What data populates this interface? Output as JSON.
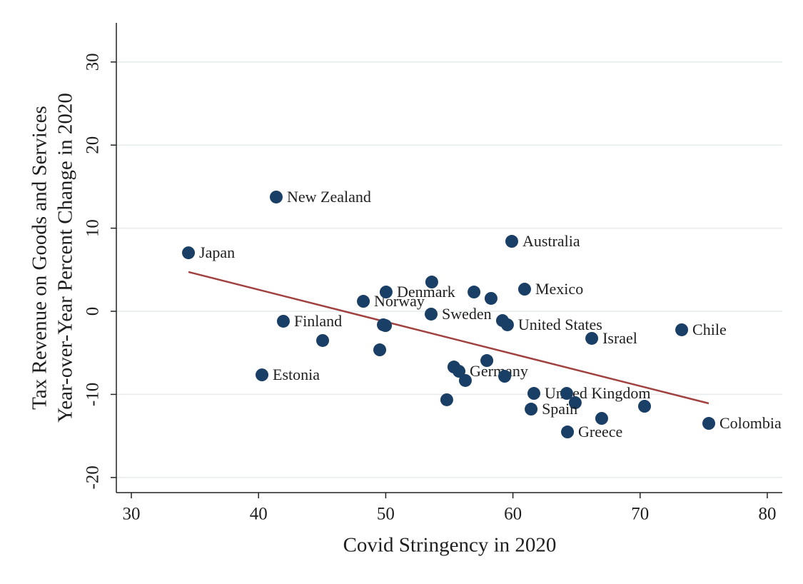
{
  "chart_data": {
    "type": "scatter",
    "xlabel": "Covid Stringency in 2020",
    "ylabel": [
      "Tax Revenue on Goods and Services",
      "Year-over-Year Percent Change in 2020"
    ],
    "x": [
      34.49,
      41.39,
      59.91,
      60.92,
      73.27,
      75.4,
      66.2,
      59.57,
      59.18,
      41.95,
      40.27,
      48.24,
      50.03,
      53.57,
      53.62,
      56.94,
      58.28,
      45.04,
      49.81,
      49.98,
      49.53,
      55.36,
      55.76,
      56.26,
      57.95,
      59.35,
      54.8,
      61.65,
      64.23,
      64.9,
      61.43,
      64.29,
      66.98,
      70.35
    ],
    "values": [
      7.04,
      13.75,
      8.42,
      2.66,
      -2.23,
      -13.49,
      -3.26,
      -1.63,
      -1.12,
      -1.2,
      -7.65,
      1.2,
      2.32,
      -0.34,
      3.52,
      2.32,
      1.55,
      -3.52,
      -1.63,
      -1.72,
      -4.64,
      -6.7,
      -7.22,
      -8.33,
      -5.93,
      -7.82,
      -10.65,
      -9.88,
      -9.88,
      -11.0,
      -11.77,
      -14.52,
      -12.89,
      -11.43
    ],
    "labels": [
      "Japan",
      "New Zealand",
      "Australia",
      "Mexico",
      "Chile",
      "Colombia",
      "Israel",
      "United States",
      null,
      "Finland",
      "Estonia",
      "Norway",
      "Denmark",
      "Sweden",
      null,
      null,
      null,
      null,
      null,
      null,
      null,
      null,
      "Germany",
      null,
      null,
      null,
      null,
      "United Kingdom",
      null,
      null,
      "Spain",
      "Greece",
      null,
      null
    ],
    "color": "#1a3f66",
    "fit_line": {
      "x": [
        34.49,
        75.4
      ],
      "values": [
        4.73,
        -11.08
      ],
      "color": "#a0403f"
    },
    "xlim": [
      28.82,
      81.18
    ],
    "xticks": [
      30,
      40,
      50,
      60,
      70,
      80
    ],
    "ylim": [
      -21.82,
      34.71
    ],
    "yticks": [
      -20,
      -10,
      0,
      10,
      20,
      30
    ],
    "grid": true
  }
}
